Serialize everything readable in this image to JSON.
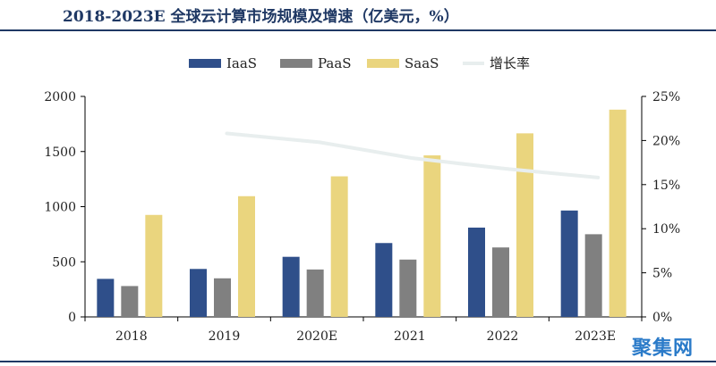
{
  "title": "2018-2023E 全球云计算市场规模及增速（亿美元，%）",
  "watermark": "聚集网",
  "chart_data": {
    "type": "bar",
    "categories": [
      "2018",
      "2019",
      "2020E",
      "2021",
      "2022",
      "2023E"
    ],
    "series": [
      {
        "name": "IaaS",
        "kind": "bar",
        "color": "#2f4f8a",
        "values": [
          345,
          435,
          545,
          670,
          810,
          965
        ]
      },
      {
        "name": "PaaS",
        "kind": "bar",
        "color": "#808080",
        "values": [
          280,
          350,
          430,
          520,
          630,
          750
        ]
      },
      {
        "name": "SaaS",
        "kind": "bar",
        "color": "#ead57e",
        "values": [
          925,
          1095,
          1275,
          1465,
          1665,
          1880
        ]
      },
      {
        "name": "增长率",
        "kind": "line",
        "axis": "right",
        "color": "#e8eeee",
        "values": [
          null,
          20.8,
          19.8,
          18.0,
          16.8,
          15.8
        ]
      }
    ],
    "y_left": {
      "ylim": [
        0,
        2000
      ],
      "ticks": [
        0,
        500,
        1000,
        1500,
        2000
      ],
      "tick_labels": [
        "0",
        "500",
        "1000",
        "1500",
        "2000"
      ]
    },
    "y_right": {
      "ylim": [
        0,
        25
      ],
      "ticks": [
        0,
        5,
        10,
        15,
        20,
        25
      ],
      "tick_labels": [
        "0%",
        "5%",
        "10%",
        "15%",
        "20%",
        "25%"
      ]
    },
    "grid": false,
    "legend": "top-center"
  }
}
